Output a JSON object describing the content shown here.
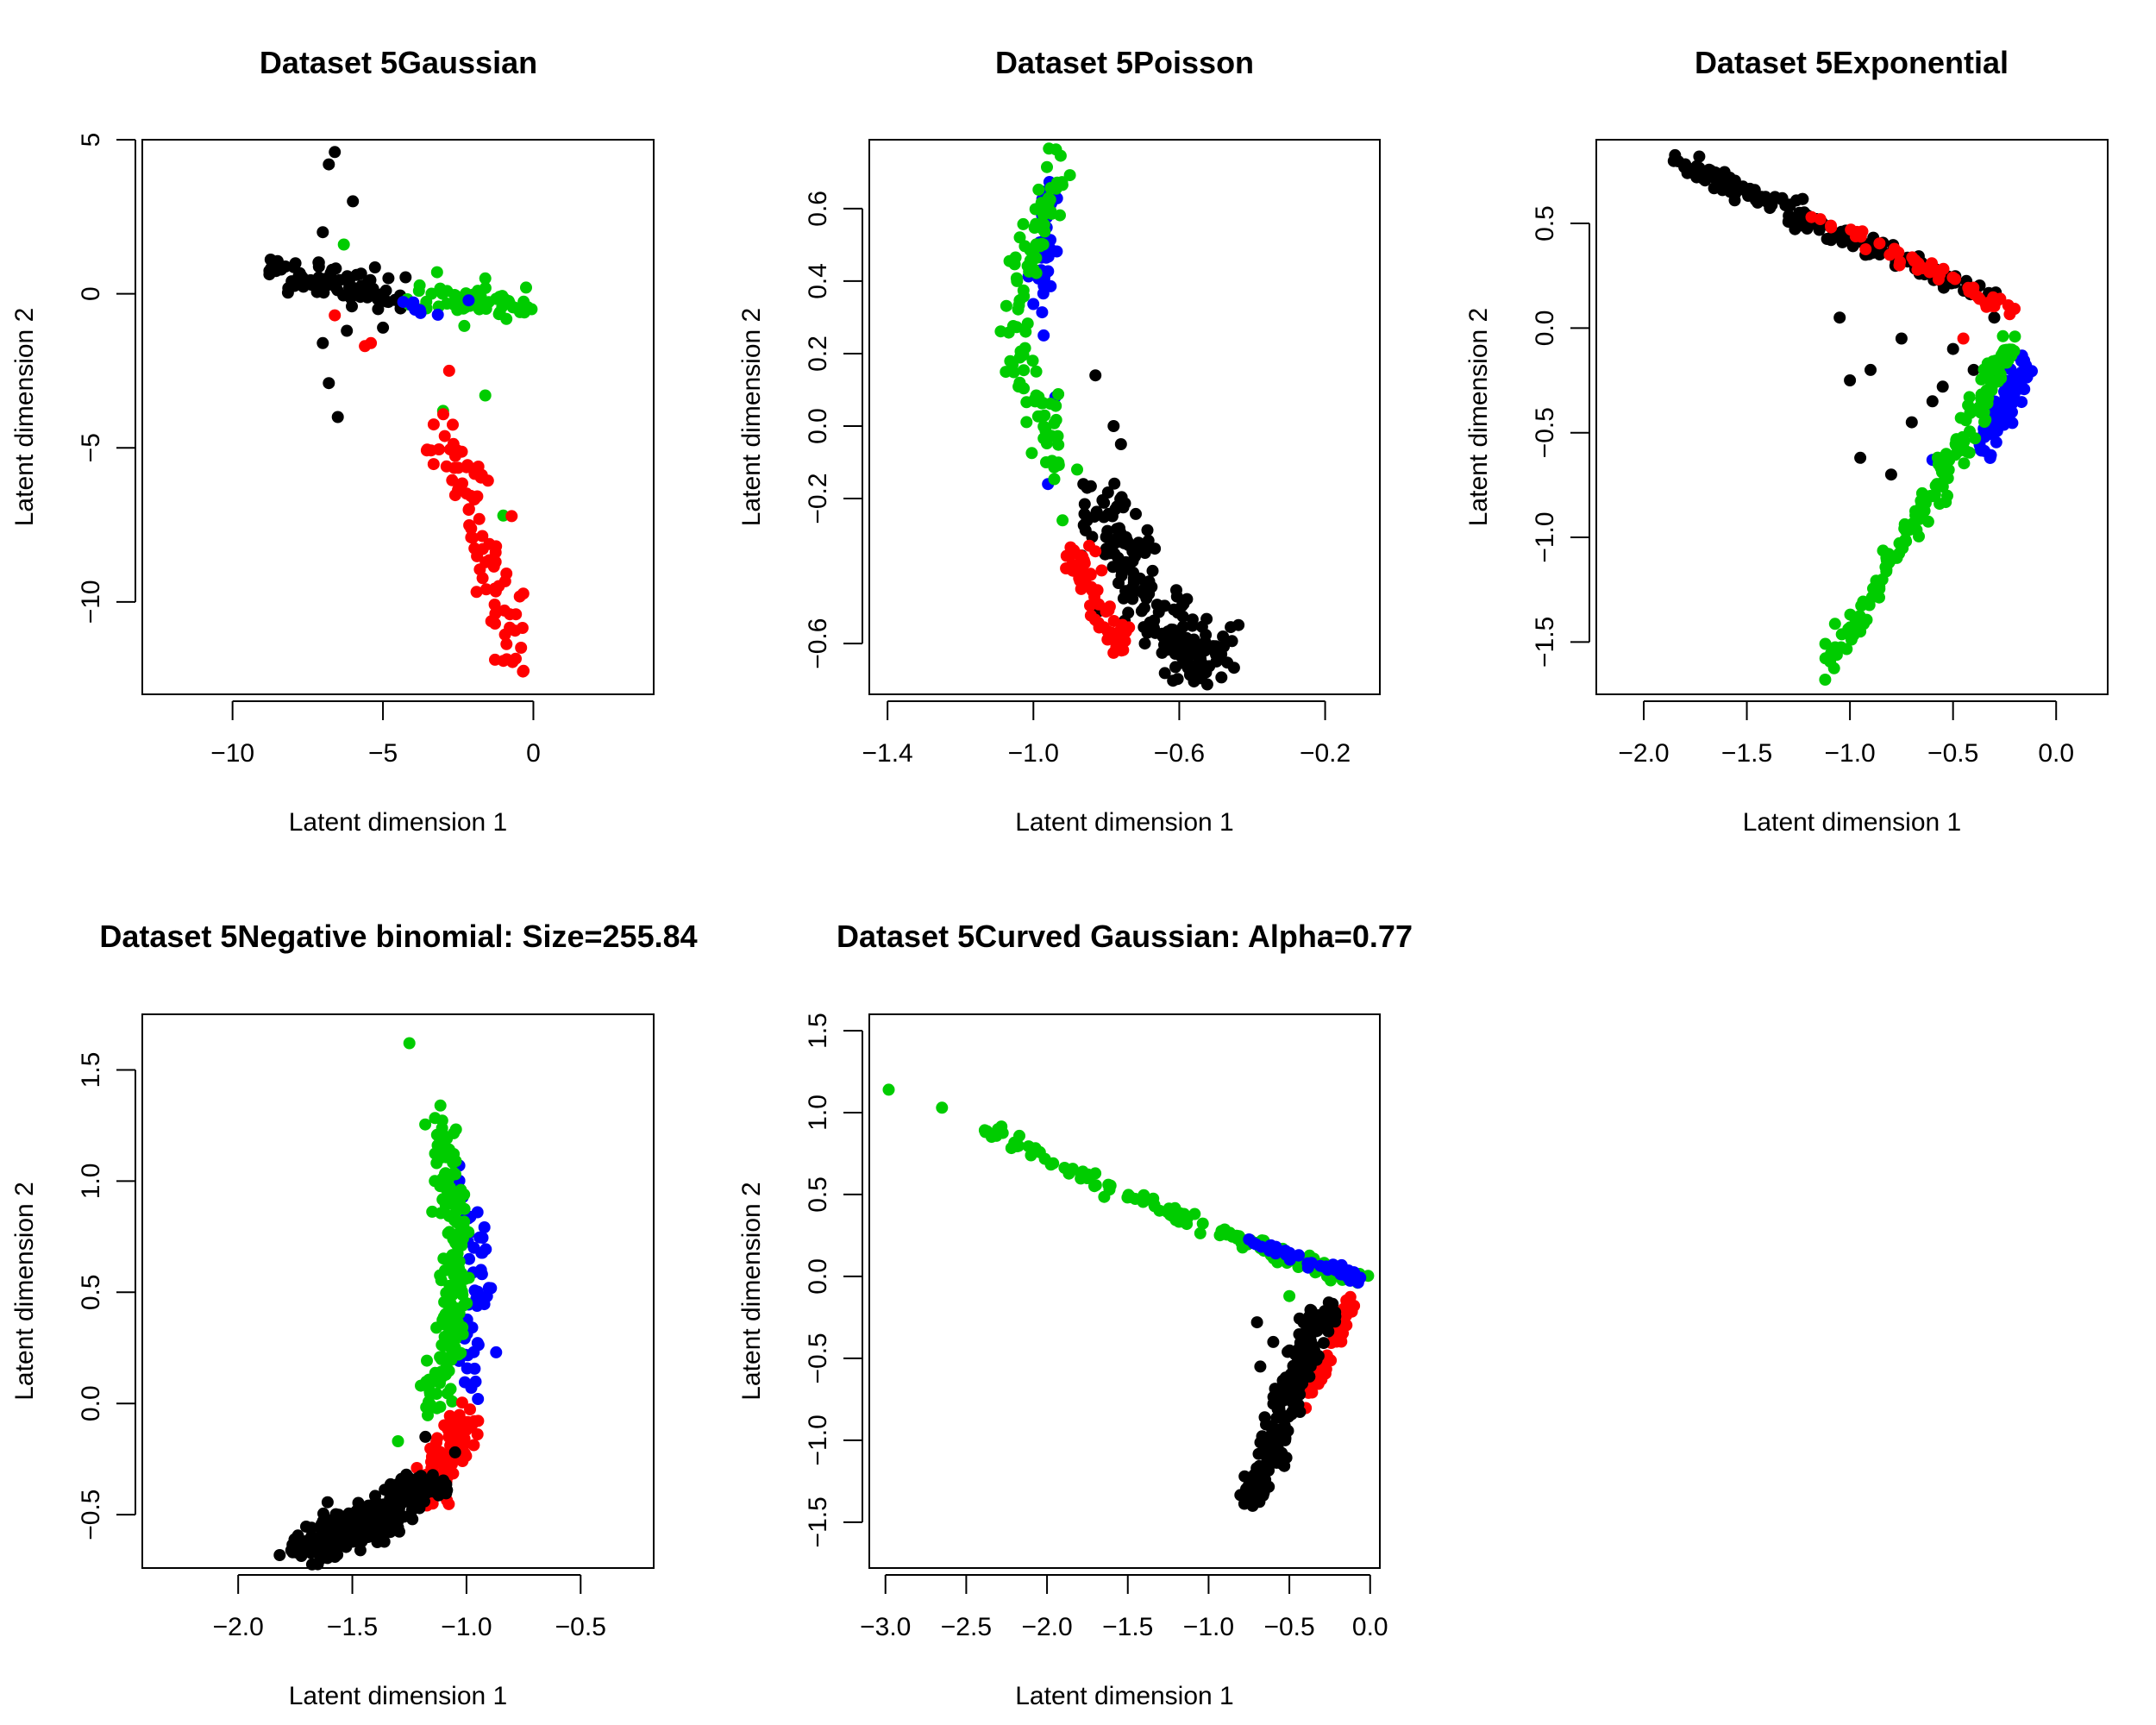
{
  "colors": {
    "c1": "#000000",
    "c2": "#ff0000",
    "c3": "#0000ff",
    "c4": "#00cc00"
  },
  "chart_data": [
    {
      "type": "scatter",
      "title": "Dataset 5Gaussian",
      "xlabel": "Latent dimension 1",
      "ylabel": "Latent dimension 2",
      "xlim": [
        -13,
        4
      ],
      "ylim": [
        -13,
        5
      ],
      "xticks": [
        -10,
        -5,
        0
      ],
      "yticks": [
        -10,
        -5,
        0,
        5
      ],
      "clusters": [
        {
          "color": "c1",
          "n": 90,
          "anchors": [
            [
              -8.8,
              0.7
            ],
            [
              -7.5,
              0.6
            ],
            [
              -6.5,
              0.3
            ],
            [
              -5.5,
              0.1
            ],
            [
              -4.2,
              0.0
            ]
          ],
          "spread": [
            0.3,
            0.25
          ],
          "extra": [
            [
              -6.6,
              4.6
            ],
            [
              -6.8,
              4.2
            ],
            [
              -6.0,
              3.0
            ],
            [
              -7.0,
              2.0
            ],
            [
              -7.0,
              -1.6
            ],
            [
              -6.8,
              -2.9
            ],
            [
              -6.5,
              -4.0
            ],
            [
              -6.2,
              -1.2
            ],
            [
              -5.0,
              -1.1
            ],
            [
              -4.6,
              -0.2
            ]
          ]
        },
        {
          "color": "c4",
          "n": 60,
          "anchors": [
            [
              -3.8,
              -0.1
            ],
            [
              -2.5,
              -0.2
            ],
            [
              -1.2,
              -0.3
            ],
            [
              -0.3,
              -0.3
            ]
          ],
          "spread": [
            0.3,
            0.25
          ],
          "extra": [
            [
              -6.3,
              1.6
            ],
            [
              -3.2,
              0.7
            ],
            [
              -1.6,
              0.5
            ],
            [
              -3.0,
              -3.8
            ],
            [
              -1.6,
              -3.3
            ],
            [
              -1.0,
              -7.2
            ]
          ]
        },
        {
          "color": "c3",
          "n": 8,
          "anchors": [
            [
              -4.3,
              0.1
            ],
            [
              -3.2,
              -0.6
            ],
            [
              -2.0,
              -0.4
            ]
          ],
          "spread": [
            0.3,
            0.2
          ],
          "extra": []
        },
        {
          "color": "c2",
          "n": 85,
          "anchors": [
            [
              -3.3,
              -4.3
            ],
            [
              -2.3,
              -5.8
            ],
            [
              -1.8,
              -8.0
            ],
            [
              -1.2,
              -9.5
            ],
            [
              -0.6,
              -12.2
            ]
          ],
          "spread": [
            0.35,
            0.5
          ],
          "extra": [
            [
              -6.6,
              -0.7
            ],
            [
              -5.6,
              -1.7
            ],
            [
              -5.4,
              -1.6
            ],
            [
              -2.8,
              -2.5
            ]
          ]
        }
      ]
    },
    {
      "type": "scatter",
      "title": "Dataset 5Poisson",
      "xlabel": "Latent dimension 1",
      "ylabel": "Latent dimension 2",
      "xlim": [
        -1.45,
        -0.05
      ],
      "ylim": [
        -0.74,
        0.79
      ],
      "xticks": [
        -1.4,
        -1.0,
        -0.6,
        -0.2
      ],
      "yticks": [
        -0.6,
        -0.2,
        0.0,
        0.2,
        0.4,
        0.6
      ],
      "clusters": [
        {
          "color": "c3",
          "n": 45,
          "anchors": [
            [
              -0.95,
              0.65
            ],
            [
              -0.96,
              0.52
            ],
            [
              -0.98,
              0.42
            ],
            [
              -0.97,
              0.28
            ]
          ],
          "spread": [
            0.015,
            0.03
          ],
          "extra": [
            [
              -0.94,
              0.08
            ],
            [
              -0.96,
              -0.16
            ]
          ]
        },
        {
          "color": "c4",
          "n": 110,
          "anchors": [
            [
              -0.93,
              0.72
            ],
            [
              -0.97,
              0.58
            ],
            [
              -1.04,
              0.38
            ],
            [
              -1.05,
              0.22
            ],
            [
              -0.98,
              0.08
            ],
            [
              -0.94,
              -0.1
            ]
          ],
          "spread": [
            0.02,
            0.03
          ],
          "extra": [
            [
              -0.92,
              -0.26
            ],
            [
              -0.88,
              -0.12
            ]
          ]
        },
        {
          "color": "c1",
          "n": 200,
          "anchors": [
            [
              -0.82,
              -0.2
            ],
            [
              -0.75,
              -0.35
            ],
            [
              -0.68,
              -0.5
            ],
            [
              -0.58,
              -0.62
            ],
            [
              -0.52,
              -0.66
            ]
          ],
          "spread": [
            0.04,
            0.05
          ],
          "extra": [
            [
              -0.83,
              0.14
            ],
            [
              -0.78,
              0.0
            ],
            [
              -0.76,
              -0.05
            ]
          ]
        },
        {
          "color": "c2",
          "n": 60,
          "anchors": [
            [
              -0.88,
              -0.35
            ],
            [
              -0.84,
              -0.43
            ],
            [
              -0.78,
              -0.58
            ],
            [
              -0.74,
              -0.62
            ]
          ],
          "spread": [
            0.02,
            0.02
          ],
          "extra": []
        }
      ]
    },
    {
      "type": "scatter",
      "title": "Dataset 5Exponential",
      "xlabel": "Latent dimension 1",
      "ylabel": "Latent dimension 2",
      "xlim": [
        -2.23,
        0.25
      ],
      "ylim": [
        -1.75,
        0.9
      ],
      "xticks": [
        -2.0,
        -1.5,
        -1.0,
        -0.5,
        0.0
      ],
      "yticks": [
        -1.5,
        -1.0,
        -0.5,
        0.0,
        0.5
      ],
      "clusters": [
        {
          "color": "c1",
          "n": 190,
          "anchors": [
            [
              -1.85,
              0.8
            ],
            [
              -1.5,
              0.65
            ],
            [
              -1.1,
              0.47
            ],
            [
              -0.7,
              0.3
            ],
            [
              -0.35,
              0.17
            ]
          ],
          "spread": [
            0.04,
            0.025
          ],
          "extra": [
            [
              -0.95,
              -0.62
            ],
            [
              -0.8,
              -0.7
            ],
            [
              -0.9,
              -0.2
            ],
            [
              -0.6,
              -0.35
            ],
            [
              -0.5,
              -0.1
            ],
            [
              -0.3,
              0.05
            ],
            [
              -0.75,
              -0.05
            ],
            [
              -1.05,
              0.05
            ],
            [
              -0.4,
              -0.2
            ],
            [
              -0.7,
              -0.45
            ],
            [
              -1.0,
              -0.25
            ],
            [
              -0.55,
              -0.28
            ]
          ]
        },
        {
          "color": "c2",
          "n": 55,
          "anchors": [
            [
              -1.2,
              0.55
            ],
            [
              -0.8,
              0.37
            ],
            [
              -0.45,
              0.2
            ],
            [
              -0.2,
              0.07
            ]
          ],
          "spread": [
            0.02,
            0.015
          ],
          "extra": [
            [
              -0.45,
              -0.05
            ]
          ]
        },
        {
          "color": "c3",
          "n": 70,
          "anchors": [
            [
              -0.15,
              -0.15
            ],
            [
              -0.22,
              -0.35
            ],
            [
              -0.35,
              -0.55
            ]
          ],
          "spread": [
            0.025,
            0.04
          ],
          "extra": [
            [
              -0.6,
              -0.63
            ]
          ]
        },
        {
          "color": "c4",
          "n": 170,
          "anchors": [
            [
              -0.22,
              -0.05
            ],
            [
              -0.38,
              -0.4
            ],
            [
              -0.6,
              -0.8
            ],
            [
              -0.85,
              -1.2
            ],
            [
              -1.12,
              -1.65
            ]
          ],
          "spread": [
            0.03,
            0.03
          ],
          "extra": [
            [
              -1.12,
              -1.68
            ],
            [
              -0.95,
              -1.45
            ]
          ]
        }
      ]
    },
    {
      "type": "scatter",
      "title": "Dataset 5Negative binomial: Size=255.84",
      "xlabel": "Latent dimension 1",
      "ylabel": "Latent dimension 2",
      "xlim": [
        -2.42,
        -0.18
      ],
      "ylim": [
        -0.74,
        1.75
      ],
      "xticks": [
        -2.0,
        -1.5,
        -1.0,
        -0.5
      ],
      "yticks": [
        -0.5,
        0.0,
        0.5,
        1.0,
        1.5
      ],
      "clusters": [
        {
          "color": "c3",
          "n": 50,
          "anchors": [
            [
              -1.05,
              1.0
            ],
            [
              -0.95,
              0.75
            ],
            [
              -0.93,
              0.55
            ],
            [
              -0.97,
              0.3
            ],
            [
              -1.0,
              0.1
            ]
          ],
          "spread": [
            0.025,
            0.05
          ],
          "extra": [
            [
              -0.87,
              0.23
            ],
            [
              -0.95,
              0.02
            ]
          ]
        },
        {
          "color": "c4",
          "n": 190,
          "anchors": [
            [
              -1.12,
              1.3
            ],
            [
              -1.08,
              1.0
            ],
            [
              -1.05,
              0.7
            ],
            [
              -1.06,
              0.45
            ],
            [
              -1.08,
              0.2
            ],
            [
              -1.15,
              0.0
            ]
          ],
          "spread": [
            0.03,
            0.05
          ],
          "extra": [
            [
              -1.25,
              1.62
            ],
            [
              -1.2,
              0.08
            ],
            [
              -1.3,
              -0.17
            ]
          ]
        },
        {
          "color": "c2",
          "n": 110,
          "anchors": [
            [
              -1.0,
              -0.05
            ],
            [
              -1.05,
              -0.18
            ],
            [
              -1.12,
              -0.3
            ],
            [
              -1.18,
              -0.4
            ]
          ],
          "spread": [
            0.04,
            0.05
          ],
          "extra": []
        },
        {
          "color": "c1",
          "n": 320,
          "anchors": [
            [
              -1.15,
              -0.35
            ],
            [
              -1.3,
              -0.45
            ],
            [
              -1.45,
              -0.55
            ],
            [
              -1.6,
              -0.6
            ],
            [
              -1.72,
              -0.66
            ]
          ],
          "spread": [
            0.06,
            0.035
          ],
          "extra": [
            [
              -1.18,
              -0.15
            ],
            [
              -1.05,
              -0.22
            ]
          ]
        }
      ]
    },
    {
      "type": "scatter",
      "title": "Dataset 5Curved Gaussian: Alpha=0.77",
      "xlabel": "Latent dimension 1",
      "ylabel": "Latent dimension 2",
      "xlim": [
        -3.1,
        0.06
      ],
      "ylim": [
        -1.78,
        1.6
      ],
      "xticks": [
        -3.0,
        -2.5,
        -2.0,
        -1.5,
        -1.0,
        -0.5,
        0.0
      ],
      "yticks": [
        -1.5,
        -1.0,
        -0.5,
        0.0,
        0.5,
        1.0,
        1.5
      ],
      "clusters": [
        {
          "color": "c4",
          "n": 140,
          "anchors": [
            [
              -2.35,
              0.88
            ],
            [
              -1.8,
              0.63
            ],
            [
              -1.3,
              0.42
            ],
            [
              -0.8,
              0.22
            ],
            [
              -0.4,
              0.08
            ],
            [
              -0.05,
              -0.02
            ]
          ],
          "spread": [
            0.04,
            0.02
          ],
          "extra": [
            [
              -2.98,
              1.14
            ],
            [
              -2.65,
              1.03
            ],
            [
              -0.5,
              -0.12
            ]
          ]
        },
        {
          "color": "c3",
          "n": 45,
          "anchors": [
            [
              -0.7,
              0.2
            ],
            [
              -0.45,
              0.12
            ],
            [
              -0.2,
              0.04
            ],
            [
              -0.05,
              -0.02
            ]
          ],
          "spread": [
            0.03,
            0.02
          ],
          "extra": []
        },
        {
          "color": "c2",
          "n": 45,
          "anchors": [
            [
              -0.12,
              -0.12
            ],
            [
              -0.18,
              -0.3
            ],
            [
              -0.28,
              -0.55
            ],
            [
              -0.45,
              -0.85
            ]
          ],
          "spread": [
            0.02,
            0.03
          ],
          "extra": []
        },
        {
          "color": "c1",
          "n": 230,
          "anchors": [
            [
              -0.28,
              -0.2
            ],
            [
              -0.4,
              -0.45
            ],
            [
              -0.5,
              -0.7
            ],
            [
              -0.58,
              -1.0
            ],
            [
              -0.72,
              -1.35
            ]
          ],
          "spread": [
            0.05,
            0.04
          ],
          "extra": [
            [
              -0.7,
              -0.28
            ],
            [
              -0.6,
              -0.4
            ],
            [
              -0.68,
              -0.55
            ]
          ]
        }
      ]
    }
  ]
}
